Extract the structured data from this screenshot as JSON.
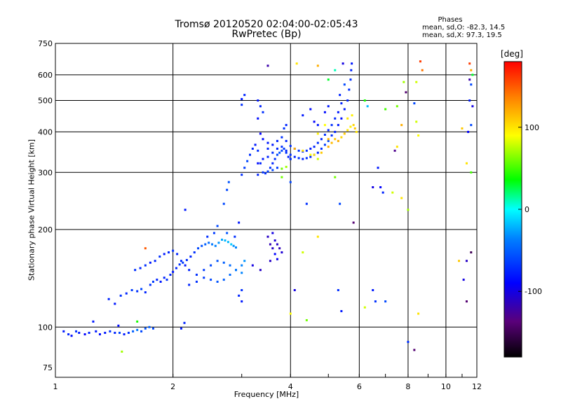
{
  "title_line1": "Tromsø 20120520 02:04:00-02:05:43",
  "title_line2": "RwPretec (Bp)",
  "phase_info": {
    "title": "Phases",
    "line_o": "mean, sd,O: -82.3, 14.5",
    "line_x": "mean, sd,X:  97.3, 19.5"
  },
  "chart_data": {
    "type": "scatter",
    "title": "Tromsø 20120520 02:04:00-02:05:43",
    "subtitle": "RwPretec (Bp)",
    "xlabel": "Frequency [MHz]",
    "ylabel": "Stationary phase Virtual Height [km]",
    "xscale": "log",
    "yscale": "log",
    "xlim": [
      1,
      12
    ],
    "ylim": [
      70,
      750
    ],
    "x_ticks": [
      1,
      2,
      4,
      6,
      8,
      10,
      12
    ],
    "y_ticks": [
      75,
      100,
      200,
      300,
      400,
      500,
      600,
      750
    ],
    "grid": true,
    "colorbar": {
      "label": "[deg]",
      "range": [
        -180,
        180
      ],
      "ticks": [
        100,
        0,
        -100
      ]
    },
    "points": [
      [
        1.05,
        97,
        -80
      ],
      [
        1.08,
        95,
        -75
      ],
      [
        1.1,
        94,
        -85
      ],
      [
        1.13,
        97,
        -70
      ],
      [
        1.15,
        96,
        -80
      ],
      [
        1.19,
        95,
        -90
      ],
      [
        1.22,
        96,
        -75
      ],
      [
        1.27,
        97,
        -80
      ],
      [
        1.3,
        95,
        -85
      ],
      [
        1.34,
        96,
        -80
      ],
      [
        1.38,
        97,
        -70
      ],
      [
        1.42,
        96,
        -75
      ],
      [
        1.46,
        96,
        -60
      ],
      [
        1.5,
        95,
        -80
      ],
      [
        1.54,
        96,
        -70
      ],
      [
        1.58,
        97,
        -50
      ],
      [
        1.62,
        98,
        -40
      ],
      [
        1.66,
        97,
        -60
      ],
      [
        1.7,
        99,
        -55
      ],
      [
        1.74,
        100,
        -50
      ],
      [
        1.78,
        99,
        -60
      ],
      [
        1.25,
        104,
        -80
      ],
      [
        1.45,
        101,
        -85
      ],
      [
        1.48,
        84,
        70
      ],
      [
        1.62,
        104,
        40
      ],
      [
        2.1,
        99,
        -80
      ],
      [
        2.14,
        103,
        -75
      ],
      [
        1.37,
        122,
        -75
      ],
      [
        1.42,
        118,
        -80
      ],
      [
        1.47,
        125,
        -70
      ],
      [
        1.52,
        127,
        -75
      ],
      [
        1.57,
        130,
        -65
      ],
      [
        1.62,
        129,
        -70
      ],
      [
        1.66,
        131,
        -60
      ],
      [
        1.7,
        128,
        -75
      ],
      [
        1.75,
        135,
        -70
      ],
      [
        1.78,
        138,
        -65
      ],
      [
        1.82,
        140,
        -75
      ],
      [
        1.86,
        138,
        -80
      ],
      [
        1.9,
        142,
        -75
      ],
      [
        1.93,
        140,
        -70
      ],
      [
        1.97,
        145,
        -75
      ],
      [
        2.0,
        148,
        -80
      ],
      [
        2.04,
        152,
        -75
      ],
      [
        2.08,
        156,
        -70
      ],
      [
        2.12,
        158,
        -65
      ],
      [
        2.17,
        161,
        -70
      ],
      [
        2.22,
        165,
        -75
      ],
      [
        2.27,
        170,
        -70
      ],
      [
        2.32,
        175,
        -60
      ],
      [
        2.37,
        178,
        -55
      ],
      [
        2.42,
        180,
        -50
      ],
      [
        2.47,
        182,
        -45
      ],
      [
        2.52,
        180,
        -40
      ],
      [
        2.57,
        178,
        -35
      ],
      [
        2.62,
        182,
        -30
      ],
      [
        2.67,
        186,
        -25
      ],
      [
        2.72,
        185,
        -20
      ],
      [
        2.77,
        183,
        -20
      ],
      [
        2.82,
        180,
        -15
      ],
      [
        2.86,
        178,
        -30
      ],
      [
        2.9,
        176,
        -35
      ],
      [
        1.6,
        150,
        -70
      ],
      [
        1.65,
        152,
        -75
      ],
      [
        1.7,
        155,
        -70
      ],
      [
        1.75,
        158,
        -80
      ],
      [
        1.8,
        160,
        -75
      ],
      [
        1.85,
        165,
        -70
      ],
      [
        1.9,
        168,
        -80
      ],
      [
        1.95,
        170,
        -75
      ],
      [
        2.0,
        172,
        -70
      ],
      [
        2.05,
        168,
        -75
      ],
      [
        2.1,
        160,
        -70
      ],
      [
        2.15,
        155,
        -80
      ],
      [
        2.2,
        150,
        -75
      ],
      [
        2.3,
        145,
        -70
      ],
      [
        2.4,
        142,
        -65
      ],
      [
        2.5,
        140,
        -60
      ],
      [
        2.6,
        138,
        -55
      ],
      [
        2.7,
        140,
        -50
      ],
      [
        2.8,
        145,
        -45
      ],
      [
        2.9,
        150,
        -40
      ],
      [
        3.0,
        155,
        -35
      ],
      [
        3.05,
        160,
        -30
      ],
      [
        2.2,
        135,
        -75
      ],
      [
        2.3,
        138,
        -70
      ],
      [
        2.4,
        150,
        -65
      ],
      [
        2.5,
        155,
        -60
      ],
      [
        2.6,
        160,
        -55
      ],
      [
        2.7,
        158,
        -50
      ],
      [
        2.8,
        155,
        -45
      ],
      [
        2.9,
        150,
        -40
      ],
      [
        3.0,
        147,
        -35
      ],
      [
        2.45,
        190,
        -70
      ],
      [
        2.55,
        195,
        -65
      ],
      [
        2.6,
        205,
        -60
      ],
      [
        2.75,
        195,
        -55
      ],
      [
        2.88,
        190,
        -70
      ],
      [
        2.95,
        210,
        -80
      ],
      [
        2.7,
        240,
        -60
      ],
      [
        2.75,
        265,
        -60
      ],
      [
        2.78,
        280,
        -55
      ],
      [
        3.0,
        295,
        -70
      ],
      [
        3.05,
        310,
        -65
      ],
      [
        3.1,
        325,
        -60
      ],
      [
        3.15,
        340,
        -70
      ],
      [
        3.2,
        355,
        -75
      ],
      [
        3.25,
        365,
        -80
      ],
      [
        3.3,
        350,
        -70
      ],
      [
        3.35,
        320,
        -75
      ],
      [
        3.4,
        300,
        -70
      ],
      [
        3.3,
        295,
        -75
      ],
      [
        3.45,
        298,
        -70
      ],
      [
        3.5,
        302,
        -65
      ],
      [
        3.55,
        310,
        -70
      ],
      [
        3.6,
        320,
        -75
      ],
      [
        3.65,
        330,
        -70
      ],
      [
        3.7,
        340,
        -60
      ],
      [
        3.75,
        345,
        -55
      ],
      [
        3.8,
        350,
        -60
      ],
      [
        3.85,
        355,
        -65
      ],
      [
        3.9,
        345,
        -70
      ],
      [
        3.95,
        335,
        -75
      ],
      [
        4.0,
        330,
        -70
      ],
      [
        3.3,
        320,
        -85
      ],
      [
        3.4,
        330,
        -80
      ],
      [
        3.5,
        335,
        -75
      ],
      [
        3.6,
        345,
        -70
      ],
      [
        3.7,
        355,
        -75
      ],
      [
        3.8,
        360,
        -70
      ],
      [
        3.9,
        350,
        -75
      ],
      [
        4.0,
        340,
        -70
      ],
      [
        4.1,
        335,
        -75
      ],
      [
        4.2,
        332,
        -70
      ],
      [
        4.3,
        330,
        -75
      ],
      [
        4.4,
        332,
        -70
      ],
      [
        4.5,
        335,
        -75
      ],
      [
        4.6,
        340,
        -70
      ],
      [
        4.7,
        345,
        -75
      ],
      [
        4.8,
        355,
        -70
      ],
      [
        4.9,
        365,
        -65
      ],
      [
        5.0,
        375,
        -60
      ],
      [
        5.1,
        390,
        -70
      ],
      [
        5.2,
        400,
        -75
      ],
      [
        5.3,
        420,
        -80
      ],
      [
        5.4,
        440,
        -85
      ],
      [
        5.5,
        470,
        -80
      ],
      [
        5.6,
        500,
        -75
      ],
      [
        5.65,
        540,
        -70
      ],
      [
        5.7,
        580,
        -70
      ],
      [
        5.72,
        620,
        -75
      ],
      [
        5.74,
        650,
        -80
      ],
      [
        3.5,
        355,
        -75
      ],
      [
        3.6,
        365,
        -80
      ],
      [
        3.7,
        375,
        -75
      ],
      [
        3.8,
        385,
        -70
      ],
      [
        3.9,
        375,
        -75
      ],
      [
        4.0,
        362,
        -70
      ],
      [
        4.1,
        355,
        -75
      ],
      [
        4.2,
        350,
        -70
      ],
      [
        4.3,
        348,
        -75
      ],
      [
        4.4,
        350,
        -70
      ],
      [
        4.5,
        355,
        -80
      ],
      [
        4.6,
        360,
        -75
      ],
      [
        4.7,
        370,
        -70
      ],
      [
        4.8,
        380,
        -75
      ],
      [
        4.9,
        392,
        -70
      ],
      [
        5.0,
        405,
        -75
      ],
      [
        5.1,
        420,
        -70
      ],
      [
        5.2,
        440,
        -75
      ],
      [
        5.3,
        460,
        -80
      ],
      [
        5.4,
        490,
        -75
      ],
      [
        3.6,
        305,
        -60
      ],
      [
        3.7,
        310,
        -65
      ],
      [
        3.8,
        308,
        60
      ],
      [
        3.9,
        312,
        70
      ],
      [
        4.6,
        340,
        100
      ],
      [
        4.8,
        345,
        110
      ],
      [
        5.0,
        360,
        120
      ],
      [
        5.1,
        370,
        115
      ],
      [
        5.2,
        380,
        110
      ],
      [
        5.3,
        375,
        120
      ],
      [
        5.4,
        385,
        105
      ],
      [
        5.5,
        395,
        110
      ],
      [
        5.6,
        405,
        100
      ],
      [
        5.7,
        415,
        95
      ],
      [
        5.8,
        420,
        105
      ],
      [
        5.85,
        410,
        110
      ],
      [
        5.9,
        400,
        100
      ],
      [
        4.7,
        395,
        95
      ],
      [
        4.9,
        420,
        90
      ],
      [
        5.0,
        380,
        115
      ],
      [
        5.6,
        440,
        100
      ],
      [
        5.75,
        450,
        95
      ],
      [
        3.0,
        505,
        -80
      ],
      [
        3.05,
        520,
        -75
      ],
      [
        3.0,
        485,
        -70
      ],
      [
        3.3,
        500,
        -80
      ],
      [
        3.35,
        480,
        -75
      ],
      [
        3.4,
        460,
        -70
      ],
      [
        3.3,
        440,
        -85
      ],
      [
        3.35,
        395,
        -90
      ],
      [
        3.4,
        380,
        -85
      ],
      [
        3.5,
        370,
        -80
      ],
      [
        3.85,
        410,
        -70
      ],
      [
        3.9,
        420,
        -75
      ],
      [
        4.3,
        450,
        -80
      ],
      [
        4.5,
        470,
        -85
      ],
      [
        4.6,
        430,
        -90
      ],
      [
        4.7,
        420,
        -80
      ],
      [
        4.9,
        460,
        -85
      ],
      [
        5.0,
        480,
        -80
      ],
      [
        3.5,
        190,
        -110
      ],
      [
        3.55,
        180,
        -115
      ],
      [
        3.6,
        175,
        -110
      ],
      [
        3.65,
        185,
        -105
      ],
      [
        3.7,
        180,
        -110
      ],
      [
        3.75,
        175,
        -115
      ],
      [
        3.8,
        170,
        -105
      ],
      [
        3.6,
        195,
        -100
      ],
      [
        3.55,
        160,
        -110
      ],
      [
        3.2,
        155,
        -100
      ],
      [
        3.35,
        150,
        -110
      ],
      [
        3.0,
        120,
        -80
      ],
      [
        2.95,
        125,
        -75
      ],
      [
        3.0,
        130,
        -70
      ],
      [
        3.65,
        168,
        -90
      ],
      [
        3.7,
        162,
        -95
      ],
      [
        3.5,
        640,
        -120
      ],
      [
        4.15,
        650,
        100
      ],
      [
        4.7,
        640,
        120
      ],
      [
        5.0,
        580,
        30
      ],
      [
        5.2,
        620,
        10
      ],
      [
        5.45,
        650,
        -100
      ],
      [
        5.35,
        520,
        -75
      ],
      [
        5.5,
        560,
        -60
      ],
      [
        6.2,
        500,
        40
      ],
      [
        6.3,
        480,
        -20
      ],
      [
        7.0,
        470,
        50
      ],
      [
        7.5,
        480,
        60
      ],
      [
        8.4,
        570,
        80
      ],
      [
        8.6,
        660,
        160
      ],
      [
        8.7,
        620,
        140
      ],
      [
        7.8,
        570,
        70
      ],
      [
        7.9,
        530,
        -140
      ],
      [
        8.3,
        490,
        -60
      ],
      [
        8.4,
        430,
        80
      ],
      [
        8.5,
        390,
        90
      ],
      [
        7.7,
        420,
        120
      ],
      [
        7.5,
        360,
        100
      ],
      [
        7.4,
        350,
        -130
      ],
      [
        11.6,
        560,
        -60
      ],
      [
        11.5,
        500,
        -80
      ],
      [
        11.7,
        480,
        -100
      ],
      [
        11.6,
        420,
        -60
      ],
      [
        11.4,
        400,
        -90
      ],
      [
        11.0,
        410,
        110
      ],
      [
        11.3,
        320,
        100
      ],
      [
        11.6,
        300,
        50
      ],
      [
        11.5,
        650,
        160
      ],
      [
        11.6,
        620,
        120
      ],
      [
        11.7,
        600,
        30
      ],
      [
        11.5,
        580,
        -120
      ],
      [
        4.0,
        330,
        -70
      ],
      [
        4.1,
        355,
        120
      ],
      [
        4.3,
        350,
        100
      ],
      [
        4.5,
        340,
        90
      ],
      [
        4.7,
        330,
        80
      ],
      [
        5.2,
        290,
        60
      ],
      [
        5.35,
        240,
        -60
      ],
      [
        5.8,
        210,
        -140
      ],
      [
        6.7,
        310,
        -80
      ],
      [
        6.8,
        270,
        -90
      ],
      [
        6.5,
        270,
        -100
      ],
      [
        6.9,
        260,
        -75
      ],
      [
        7.3,
        260,
        80
      ],
      [
        7.7,
        250,
        100
      ],
      [
        8.0,
        230,
        70
      ],
      [
        4.4,
        240,
        -70
      ],
      [
        4.0,
        280,
        -60
      ],
      [
        3.8,
        290,
        60
      ],
      [
        4.7,
        190,
        100
      ],
      [
        4.3,
        170,
        80
      ],
      [
        4.0,
        110,
        90
      ],
      [
        4.1,
        130,
        -100
      ],
      [
        4.4,
        105,
        60
      ],
      [
        5.3,
        130,
        -70
      ],
      [
        5.4,
        112,
        -80
      ],
      [
        6.5,
        130,
        -80
      ],
      [
        6.6,
        120,
        -70
      ],
      [
        7.0,
        120,
        -60
      ],
      [
        6.2,
        115,
        80
      ],
      [
        8.5,
        110,
        100
      ],
      [
        8.0,
        90,
        -70
      ],
      [
        8.3,
        85,
        -140
      ],
      [
        11.3,
        160,
        -110
      ],
      [
        11.1,
        140,
        -100
      ],
      [
        11.6,
        170,
        -150
      ],
      [
        11.3,
        120,
        -140
      ],
      [
        10.8,
        160,
        110
      ],
      [
        1.7,
        175,
        150
      ],
      [
        2.15,
        230,
        -80
      ]
    ]
  }
}
